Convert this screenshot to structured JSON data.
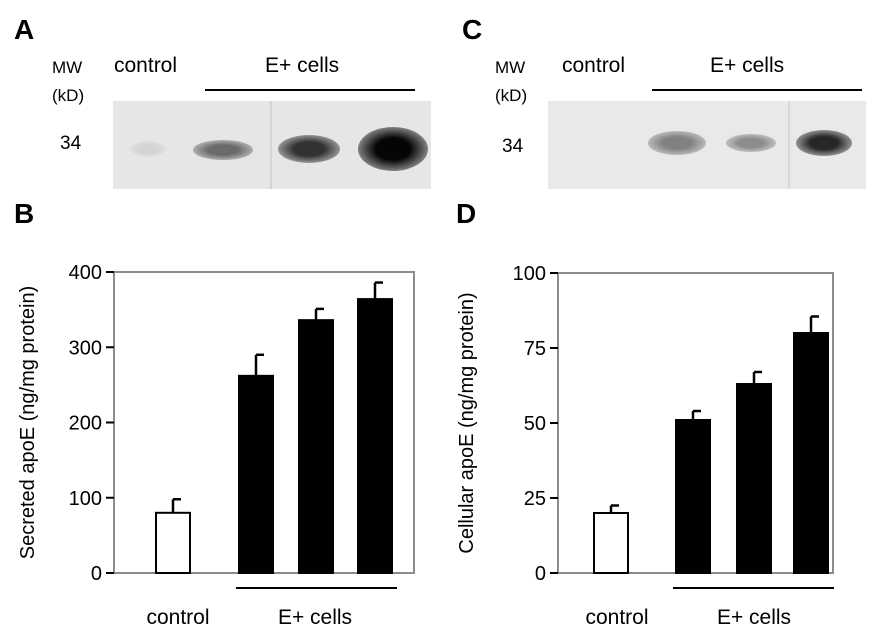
{
  "panel_a": {
    "letter": "A",
    "mw_label": "MW",
    "kd_label": "(kD)",
    "band_kd": "34",
    "control_label": "control",
    "group_label": "E+ cells",
    "band_intensity": [
      0.08,
      0.55,
      0.8,
      1.0
    ]
  },
  "panel_c": {
    "letter": "C",
    "mw_label": "MW",
    "kd_label": "(kD)",
    "band_kd": "34",
    "control_label": "control",
    "group_label": "E+ cells",
    "band_intensity": [
      0.0,
      0.45,
      0.4,
      0.85
    ]
  },
  "chart_data": [
    {
      "panel": "B",
      "type": "bar",
      "ylabel": "Secreted apoE (ng/mg protein)",
      "ylim": [
        0,
        400
      ],
      "yticks": [
        "0",
        "100",
        "200",
        "300",
        "400"
      ],
      "ytick_values": [
        0,
        100,
        200,
        300,
        400
      ],
      "xlabel_control": "control",
      "xlabel_group": "E+ cells",
      "values": [
        80,
        262,
        336,
        364
      ],
      "errors": [
        18,
        28,
        15,
        22
      ],
      "fills": [
        "#ffffff",
        "#000000",
        "#000000",
        "#000000"
      ]
    },
    {
      "panel": "D",
      "type": "bar",
      "ylabel": "Cellular apoE (ng/mg protein)",
      "ylim": [
        0,
        100
      ],
      "yticks": [
        "0",
        "25",
        "50",
        "75",
        "100"
      ],
      "ytick_values": [
        0,
        25,
        50,
        75,
        100
      ],
      "xlabel_control": "control",
      "xlabel_group": "E+ cells",
      "values": [
        20,
        51,
        63,
        80
      ],
      "errors": [
        2.5,
        3,
        4,
        5.5
      ],
      "fills": [
        "#ffffff",
        "#000000",
        "#000000",
        "#000000"
      ]
    }
  ]
}
